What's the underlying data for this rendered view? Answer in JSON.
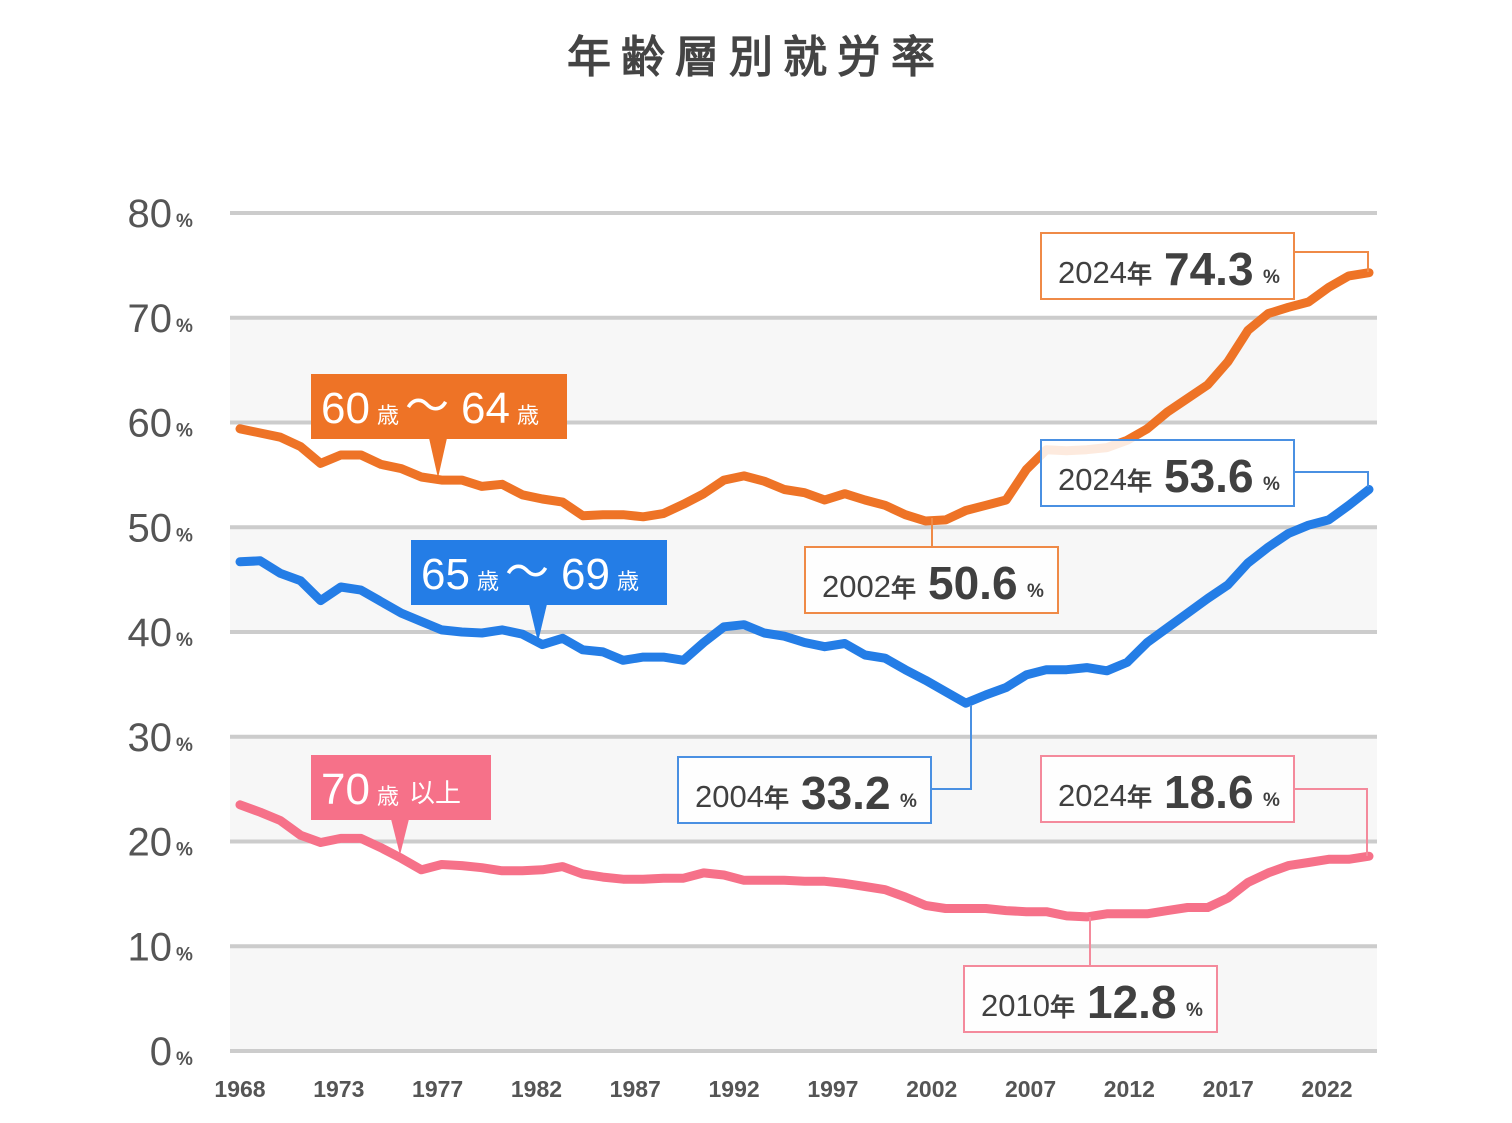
{
  "chart_data": {
    "type": "line",
    "title": "年齢層別就労率",
    "xlabel": "",
    "ylabel": "",
    "ylim": [
      0,
      80
    ],
    "xlim": [
      1968,
      2024
    ],
    "grid": true,
    "y_ticks": [
      {
        "value": 0,
        "label": "0",
        "unit": "%"
      },
      {
        "value": 10,
        "label": "10",
        "unit": "%"
      },
      {
        "value": 20,
        "label": "20",
        "unit": "%"
      },
      {
        "value": 30,
        "label": "30",
        "unit": "%"
      },
      {
        "value": 40,
        "label": "40",
        "unit": "%"
      },
      {
        "value": 50,
        "label": "50",
        "unit": "%"
      },
      {
        "value": 60,
        "label": "60",
        "unit": "%"
      },
      {
        "value": 70,
        "label": "70",
        "unit": "%"
      },
      {
        "value": 80,
        "label": "80",
        "unit": "%"
      }
    ],
    "x_tick_labels": [
      "1968",
      "1973",
      "1977",
      "1982",
      "1987",
      "1992",
      "1997",
      "2002",
      "2007",
      "2012",
      "2017",
      "2022"
    ],
    "x": [
      1968,
      1969,
      1970,
      1971,
      1972,
      1973,
      1974,
      1975,
      1976,
      1977,
      1978,
      1979,
      1980,
      1981,
      1982,
      1983,
      1984,
      1985,
      1986,
      1987,
      1988,
      1989,
      1990,
      1991,
      1992,
      1993,
      1994,
      1995,
      1996,
      1997,
      1998,
      1999,
      2000,
      2001,
      2002,
      2003,
      2004,
      2005,
      2006,
      2007,
      2008,
      2009,
      2010,
      2011,
      2012,
      2013,
      2014,
      2015,
      2016,
      2017,
      2018,
      2019,
      2020,
      2021,
      2022,
      2023,
      2024
    ],
    "series": [
      {
        "name": "60歳〜64歳",
        "color": "#ee7326",
        "tag": {
          "from": "60",
          "to": "64",
          "unit": "歳",
          "sep": "〜"
        },
        "values": [
          59.4,
          59.0,
          58.6,
          57.7,
          56.1,
          56.9,
          56.9,
          56.0,
          55.6,
          54.8,
          54.5,
          54.5,
          53.9,
          54.1,
          53.1,
          52.7,
          52.4,
          51.1,
          51.2,
          51.2,
          51.0,
          51.3,
          52.2,
          53.2,
          54.5,
          54.9,
          54.4,
          53.6,
          53.3,
          52.6,
          53.2,
          52.6,
          52.1,
          51.2,
          50.6,
          50.7,
          51.6,
          52.1,
          52.6,
          55.5,
          57.4,
          57.3,
          57.4,
          57.6,
          58.3,
          59.4,
          61.0,
          62.3,
          63.6,
          65.8,
          68.8,
          70.4,
          71.0,
          71.5,
          72.9,
          74.0,
          74.3
        ]
      },
      {
        "name": "65歳〜69歳",
        "color": "#247de6",
        "tag": {
          "from": "65",
          "to": "69",
          "unit": "歳",
          "sep": "〜"
        },
        "values": [
          46.7,
          46.8,
          45.6,
          44.9,
          43.0,
          44.3,
          44.0,
          42.9,
          41.8,
          41.0,
          40.2,
          40.0,
          39.9,
          40.2,
          39.8,
          38.8,
          39.4,
          38.3,
          38.1,
          37.3,
          37.6,
          37.6,
          37.3,
          39.0,
          40.5,
          40.7,
          39.9,
          39.6,
          39.0,
          38.6,
          38.9,
          37.8,
          37.5,
          36.4,
          35.4,
          34.3,
          33.2,
          34.0,
          34.7,
          35.9,
          36.4,
          36.4,
          36.6,
          36.3,
          37.1,
          39.0,
          40.4,
          41.8,
          43.2,
          44.5,
          46.6,
          48.1,
          49.4,
          50.2,
          50.7,
          52.1,
          53.6
        ]
      },
      {
        "name": "70歳以上",
        "color": "#f67189",
        "tag": {
          "from": "70",
          "unit": "歳",
          "suffix": "以上"
        },
        "values": [
          23.5,
          22.8,
          22.0,
          20.6,
          19.9,
          20.3,
          20.3,
          19.4,
          18.4,
          17.3,
          17.8,
          17.7,
          17.5,
          17.2,
          17.2,
          17.3,
          17.6,
          16.9,
          16.6,
          16.4,
          16.4,
          16.5,
          16.5,
          17.0,
          16.8,
          16.3,
          16.3,
          16.3,
          16.2,
          16.2,
          16.0,
          15.7,
          15.4,
          14.7,
          13.9,
          13.6,
          13.6,
          13.6,
          13.4,
          13.3,
          13.3,
          12.9,
          12.8,
          13.1,
          13.1,
          13.1,
          13.4,
          13.7,
          13.7,
          14.6,
          16.1,
          17.0,
          17.7,
          18.0,
          18.3,
          18.3,
          18.6
        ]
      }
    ],
    "annotations": [
      {
        "series": 0,
        "year": "2024",
        "nen": "年",
        "value": "74.3",
        "unit": "%",
        "color": "#ef8a47"
      },
      {
        "series": 0,
        "year": "2002",
        "nen": "年",
        "value": "50.6",
        "unit": "%",
        "color": "#ef8a47"
      },
      {
        "series": 1,
        "year": "2024",
        "nen": "年",
        "value": "53.6",
        "unit": "%",
        "color": "#4a90e2"
      },
      {
        "series": 1,
        "year": "2004",
        "nen": "年",
        "value": "33.2",
        "unit": "%",
        "color": "#4a90e2"
      },
      {
        "series": 2,
        "year": "2024",
        "nen": "年",
        "value": "18.6",
        "unit": "%",
        "color": "#f48a9c"
      },
      {
        "series": 2,
        "year": "2010",
        "nen": "年",
        "value": "12.8",
        "unit": "%",
        "color": "#f48a9c"
      }
    ]
  },
  "colors": {
    "grid": "#cccccc",
    "band": "#f7f7f7",
    "text": "#444444"
  }
}
